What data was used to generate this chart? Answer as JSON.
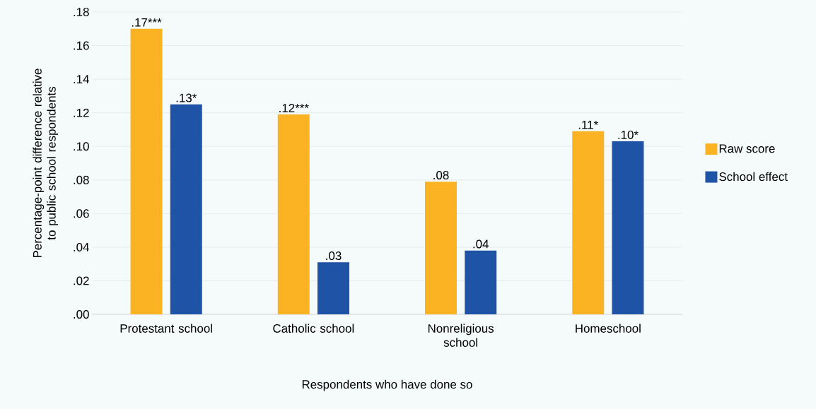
{
  "chart_data": {
    "type": "bar",
    "xlabel": "Respondents who have done so",
    "ylabel": "Percentage-point difference relative to public school respondents",
    "categories": [
      "Protestant school",
      "Catholic school",
      "Nonreligious school",
      "Homeschool"
    ],
    "series": [
      {
        "name": "Raw score",
        "color": "#fbb323",
        "values": [
          0.17,
          0.119,
          0.079,
          0.109
        ],
        "value_labels": [
          ".17***",
          ".12***",
          ".08",
          ".11*"
        ]
      },
      {
        "name": "School effect",
        "color": "#1f53a6",
        "values": [
          0.125,
          0.031,
          0.038,
          0.103
        ],
        "value_labels": [
          ".13*",
          ".03",
          ".04",
          ".10*"
        ]
      }
    ],
    "ylim": [
      0,
      0.18
    ],
    "yticks": [
      {
        "value": 0,
        "label": ".00"
      },
      {
        "value": 0.02,
        "label": ".02"
      },
      {
        "value": 0.04,
        "label": ".04"
      },
      {
        "value": 0.06,
        "label": ".06"
      },
      {
        "value": 0.08,
        "label": ".08"
      },
      {
        "value": 0.1,
        "label": ".10"
      },
      {
        "value": 0.12,
        "label": ".12"
      },
      {
        "value": 0.14,
        "label": ".14"
      },
      {
        "value": 0.16,
        "label": ".16"
      },
      {
        "value": 0.18,
        "label": ".18"
      }
    ],
    "grid": "y",
    "legend": "right"
  }
}
